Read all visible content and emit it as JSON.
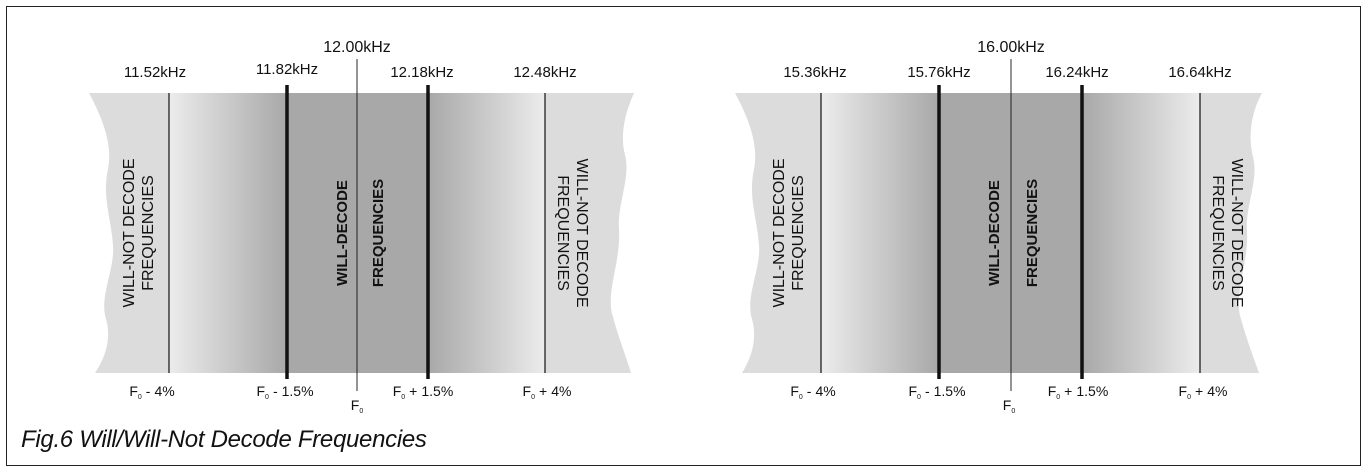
{
  "caption": "Fig.6 Will/Will-Not Decode Frequencies",
  "panels": [
    {
      "center": "12.00kHz",
      "lines": [
        "11.52kHz",
        "11.82kHz",
        "12.18kHz",
        "12.48kHz"
      ],
      "will_not_left": [
        "WILL-NOT DECODE",
        "FREQUENCIES"
      ],
      "will_center": [
        "WILL-DECODE",
        "FREQUENCIES"
      ],
      "will_not_right": [
        "WILL-NOT DECODE",
        "FREQUENCIES"
      ],
      "offsets": [
        {
          "sign": "-",
          "pct": "4%"
        },
        {
          "sign": "-",
          "pct": "1.5%"
        },
        {
          "sign": "+",
          "pct": "1.5%"
        },
        {
          "sign": "+",
          "pct": "4%"
        }
      ],
      "f0_label": "F",
      "f0_sub": "0"
    },
    {
      "center": "16.00kHz",
      "lines": [
        "15.36kHz",
        "15.76kHz",
        "16.24kHz",
        "16.64kHz"
      ],
      "will_not_left": [
        "WILL-NOT DECODE",
        "FREQUENCIES"
      ],
      "will_center": [
        "WILL-DECODE",
        "FREQUENCIES"
      ],
      "will_not_right": [
        "WILL-NOT DECODE",
        "FREQUENCIES"
      ],
      "offsets": [
        {
          "sign": "-",
          "pct": "4%"
        },
        {
          "sign": "-",
          "pct": "1.5%"
        },
        {
          "sign": "+",
          "pct": "1.5%"
        },
        {
          "sign": "+",
          "pct": "4%"
        }
      ],
      "f0_label": "F",
      "f0_sub": "0"
    }
  ]
}
